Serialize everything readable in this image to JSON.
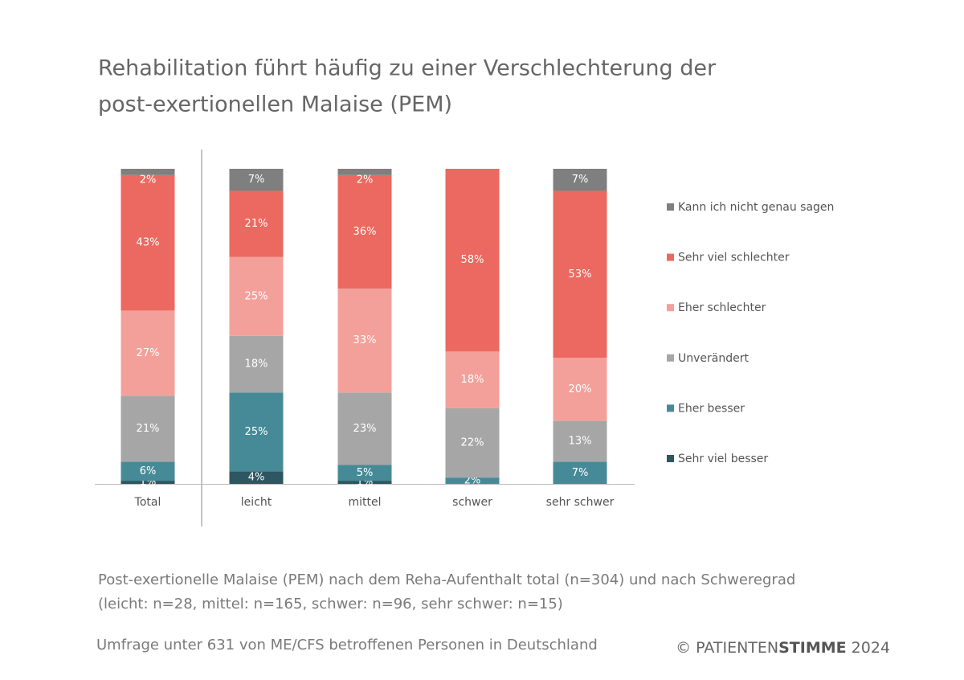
{
  "chart_data": {
    "type": "bar",
    "stacked": true,
    "title": [
      "Rehabilitation führt häufig zu einer Verschlechterung der",
      "post-exertionellen Malaise (PEM)"
    ],
    "caption": [
      "Post-exertionelle Malaise (PEM) nach dem Reha-Aufenthalt total (n=304) und nach Schweregrad",
      "(leicht: n=28, mittel: n=165, schwer: n=96, sehr schwer: n=15)"
    ],
    "source": "Umfrage unter 631 von ME/CFS betroffenen Personen in Deutschland",
    "credit": {
      "prefix": "© PATIENTEN",
      "brand": "STIMME",
      "year": "2024"
    },
    "categories": [
      "Total",
      "leicht",
      "mittel",
      "schwer",
      "sehr schwer"
    ],
    "ylim": [
      0,
      100
    ],
    "series": [
      {
        "name": "Sehr viel besser",
        "color": "#2d5661",
        "values": [
          1,
          4,
          1,
          null,
          null
        ],
        "value_labels": [
          "1%",
          "4%",
          "1%",
          null,
          null
        ]
      },
      {
        "name": "Eher besser",
        "color": "#468a97",
        "values": [
          6,
          25,
          5,
          2,
          7
        ],
        "value_labels": [
          "6%",
          "25%",
          "5%",
          "2%",
          "7%"
        ]
      },
      {
        "name": "Unverändert",
        "color": "#a6a6a6",
        "values": [
          21,
          18,
          23,
          22,
          13
        ],
        "value_labels": [
          "21%",
          "18%",
          "23%",
          "22%",
          "13%"
        ]
      },
      {
        "name": "Eher schlechter",
        "color": "#f4a09a",
        "values": [
          27,
          25,
          33,
          18,
          20
        ],
        "value_labels": [
          "27%",
          "25%",
          "33%",
          "18%",
          "20%"
        ]
      },
      {
        "name": "Sehr viel schlechter",
        "color": "#eb6960",
        "values": [
          43,
          21,
          36,
          58,
          53
        ],
        "value_labels": [
          "43%",
          "21%",
          "36%",
          "58%",
          "53%"
        ]
      },
      {
        "name": "Kann ich nicht genau sagen",
        "color": "#7f7f7f",
        "values": [
          2,
          7,
          2,
          null,
          7
        ],
        "value_labels": [
          "2%",
          "7%",
          "2%",
          null,
          "7%"
        ]
      }
    ]
  }
}
